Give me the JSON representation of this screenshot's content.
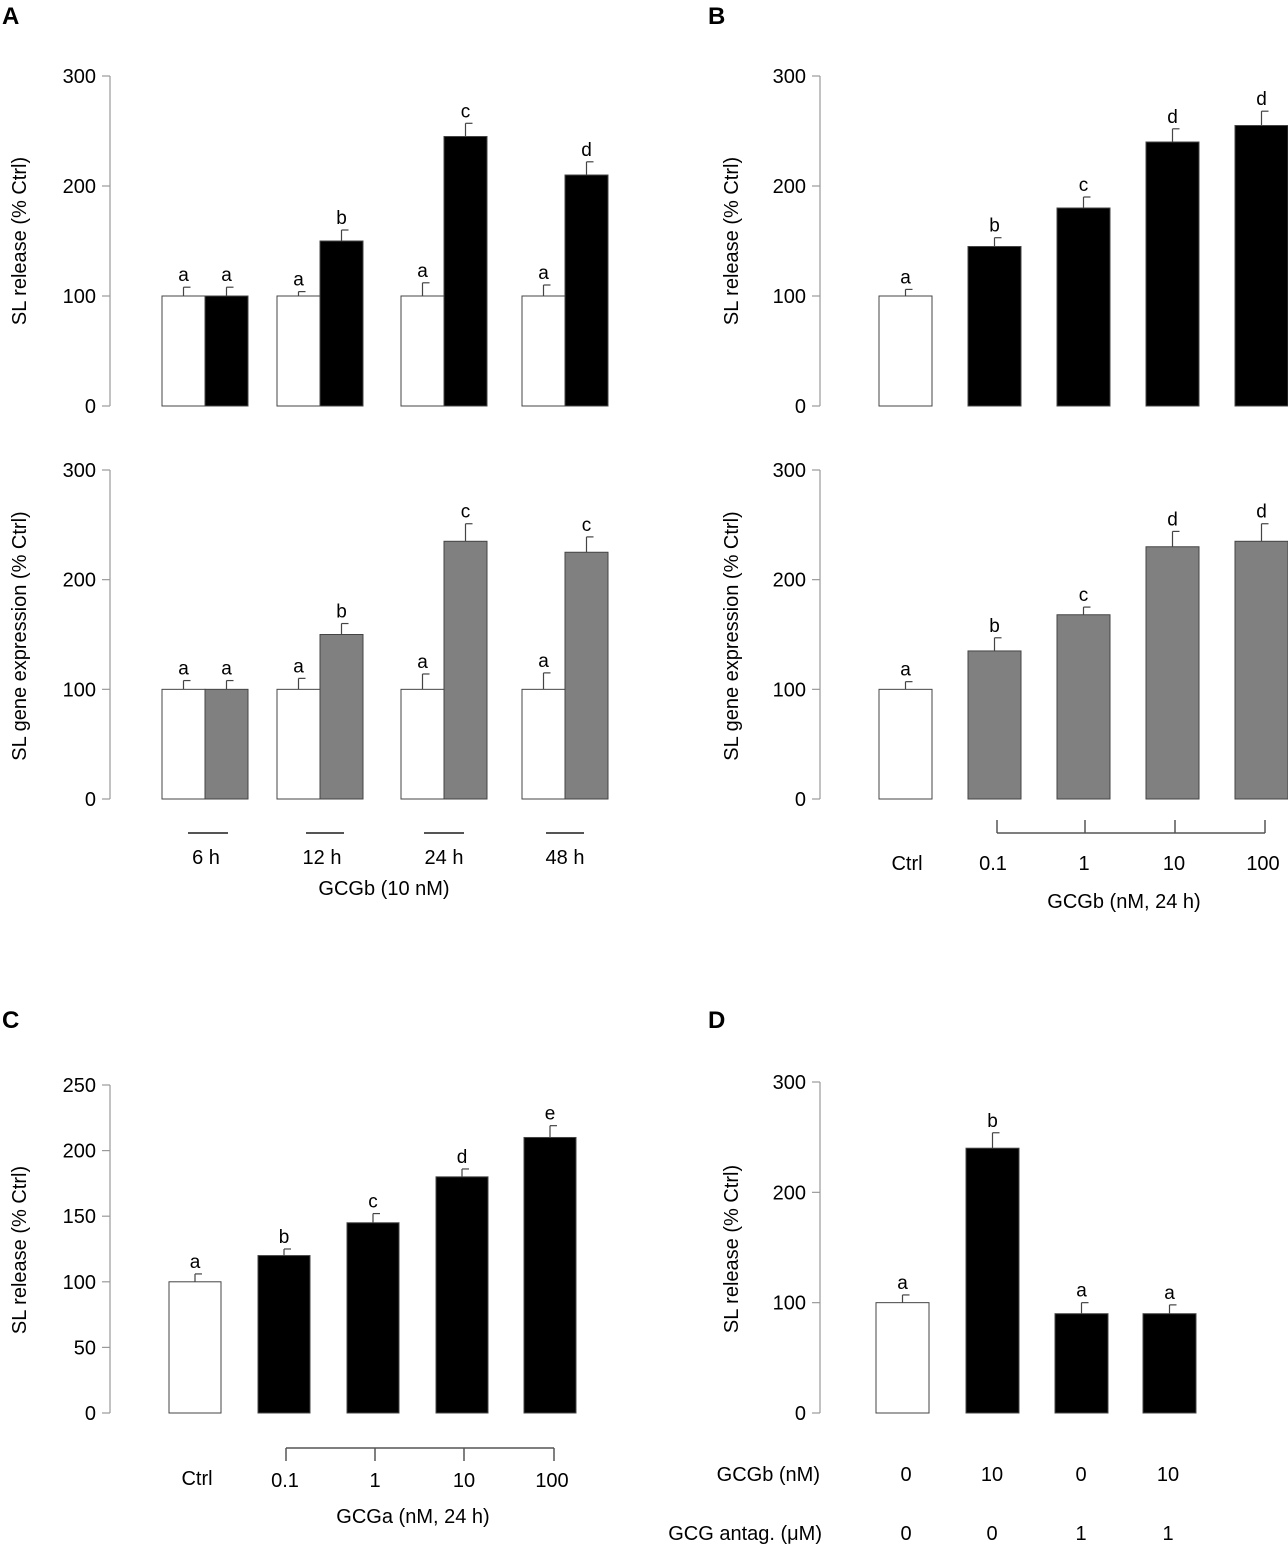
{
  "panel_labels": [
    "A",
    "B",
    "C",
    "D"
  ],
  "colors": {
    "control": "#ffffff",
    "release": "#000000",
    "expression": "#808080",
    "axis": "#999999",
    "edge": "#444444"
  },
  "axis_labels": {
    "A1_y": "SL release (% Ctrl)",
    "A2_y": "SL gene expression (% Ctrl)",
    "B1_y": "SL release (% Ctrl)",
    "B2_y": "SL gene expression (% Ctrl)",
    "C_y": "SL release (% Ctrl)",
    "D_y": "SL release (% Ctrl)",
    "A_x": "GCGb (10 nM)",
    "B_x": "GCGb (nM, 24 h)",
    "C_x": "GCGa (nM, 24 h)"
  },
  "ticks": {
    "y300": [
      "0",
      "100",
      "200",
      "300"
    ],
    "y250": [
      "0",
      "50",
      "100",
      "150",
      "200",
      "250"
    ],
    "A_groups": [
      "6 h",
      "12 h",
      "24 h",
      "48 h"
    ],
    "B_x": [
      "Ctrl",
      "0.1",
      "1",
      "10",
      "100"
    ],
    "C_x": [
      "Ctrl",
      "0.1",
      "1",
      "10",
      "100"
    ]
  },
  "panel_D_table": {
    "row1_label": "GCGb (nM)",
    "row1_values": [
      "0",
      "10",
      "0",
      "10"
    ],
    "row2_label": "GCG antag. (μM)",
    "row2_values": [
      "0",
      "0",
      "1",
      "1"
    ]
  },
  "chart_data": [
    {
      "id": "A-release",
      "type": "bar",
      "categories": [
        "6 h",
        "12 h",
        "24 h",
        "48 h"
      ],
      "xlabel": "GCGb (10 nM)",
      "ylabel": "SL release (% Ctrl)",
      "ylim": [
        0,
        300
      ],
      "series": [
        {
          "name": "Ctrl",
          "values": [
            100,
            100,
            100,
            100
          ],
          "errors": [
            8,
            4,
            12,
            10
          ],
          "letters": [
            "a",
            "a",
            "a",
            "a"
          ]
        },
        {
          "name": "GCGb",
          "values": [
            100,
            150,
            245,
            210
          ],
          "errors": [
            8,
            10,
            12,
            12
          ],
          "letters": [
            "a",
            "b",
            "c",
            "d"
          ]
        }
      ]
    },
    {
      "id": "A-expression",
      "type": "bar",
      "categories": [
        "6 h",
        "12 h",
        "24 h",
        "48 h"
      ],
      "xlabel": "GCGb (10 nM)",
      "ylabel": "SL gene expression (% Ctrl)",
      "ylim": [
        0,
        300
      ],
      "series": [
        {
          "name": "Ctrl",
          "values": [
            100,
            100,
            100,
            100
          ],
          "errors": [
            8,
            10,
            14,
            15
          ],
          "letters": [
            "a",
            "a",
            "a",
            "a"
          ]
        },
        {
          "name": "GCGb",
          "values": [
            100,
            150,
            235,
            225
          ],
          "errors": [
            8,
            10,
            16,
            14
          ],
          "letters": [
            "a",
            "b",
            "c",
            "c"
          ]
        }
      ]
    },
    {
      "id": "B-release",
      "type": "bar",
      "categories": [
        "Ctrl",
        "0.1",
        "1",
        "10",
        "100"
      ],
      "xlabel": "GCGb (nM, 24 h)",
      "ylabel": "SL release (% Ctrl)",
      "ylim": [
        0,
        300
      ],
      "values": [
        100,
        145,
        180,
        240,
        255
      ],
      "errors": [
        6,
        8,
        10,
        12,
        13
      ],
      "letters": [
        "a",
        "b",
        "c",
        "d",
        "d"
      ]
    },
    {
      "id": "B-expression",
      "type": "bar",
      "categories": [
        "Ctrl",
        "0.1",
        "1",
        "10",
        "100"
      ],
      "xlabel": "GCGb (nM, 24 h)",
      "ylabel": "SL gene expression (% Ctrl)",
      "ylim": [
        0,
        300
      ],
      "values": [
        100,
        135,
        168,
        230,
        235
      ],
      "errors": [
        7,
        12,
        7,
        14,
        16
      ],
      "letters": [
        "a",
        "b",
        "c",
        "d",
        "d"
      ]
    },
    {
      "id": "C-release",
      "type": "bar",
      "categories": [
        "Ctrl",
        "0.1",
        "1",
        "10",
        "100"
      ],
      "xlabel": "GCGa (nM, 24 h)",
      "ylabel": "SL release (% Ctrl)",
      "ylim": [
        0,
        250
      ],
      "values": [
        100,
        120,
        145,
        180,
        210
      ],
      "errors": [
        6,
        5,
        7,
        6,
        9
      ],
      "letters": [
        "a",
        "b",
        "c",
        "d",
        "e"
      ]
    },
    {
      "id": "D-release",
      "type": "bar",
      "categories": [
        "GCGb 0 / antag. 0",
        "GCGb 10 / antag. 0",
        "GCGb 0 / antag. 1",
        "GCGb 10 / antag. 1"
      ],
      "ylabel": "SL release (% Ctrl)",
      "ylim": [
        0,
        300
      ],
      "values": [
        100,
        240,
        90,
        90
      ],
      "errors": [
        7,
        14,
        10,
        8
      ],
      "letters": [
        "a",
        "b",
        "a",
        "a"
      ]
    }
  ]
}
